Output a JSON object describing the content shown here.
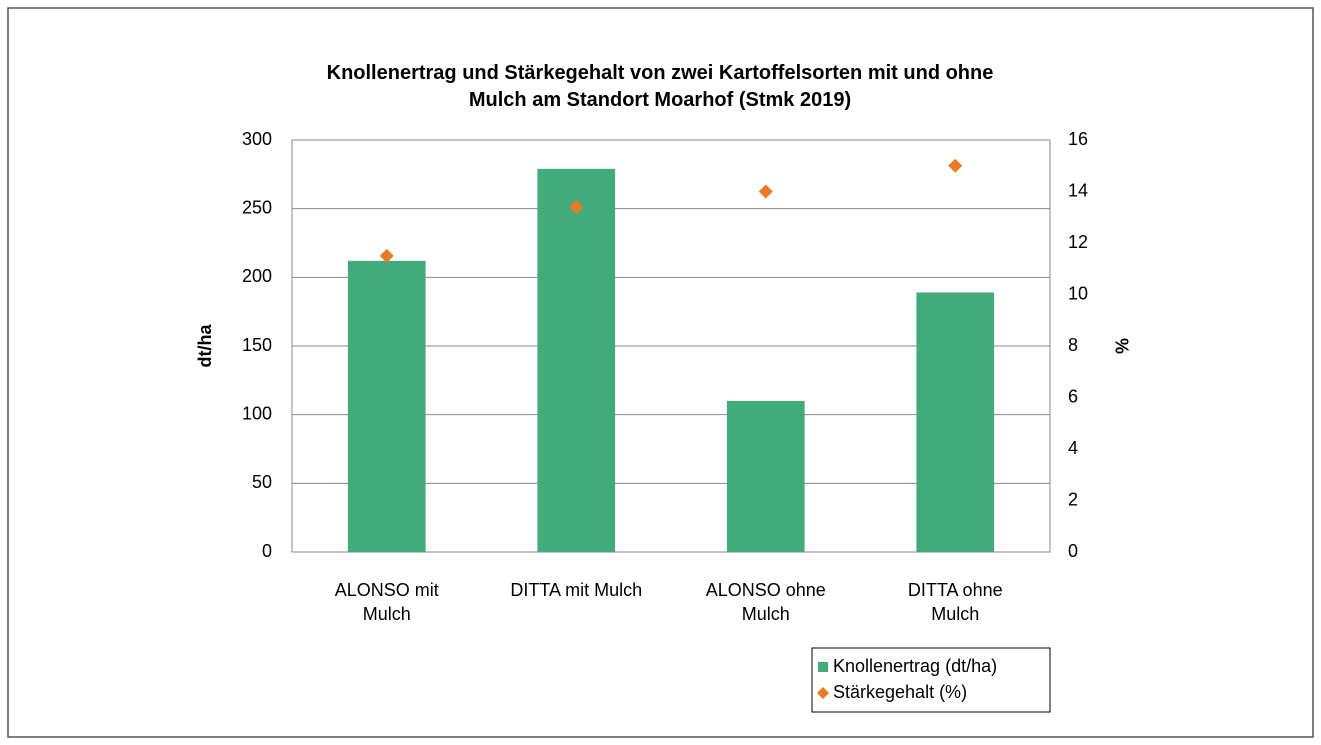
{
  "chart_data": {
    "type": "bar",
    "title": "Knollenertrag und Stärkegehalt von zwei Kartoffelsorten mit und ohne Mulch am Standort Moarhof (Stmk 2019)",
    "categories": [
      "ALONSO mit Mulch",
      "DITTA mit Mulch",
      "ALONSO ohne Mulch",
      "DITTA ohne Mulch"
    ],
    "series": [
      {
        "name": "Knollenertrag (dt/ha)",
        "color": "#43aa7c",
        "type": "bar",
        "values": [
          212,
          279,
          110,
          189
        ]
      },
      {
        "name": "Stärkegehalt (%)",
        "color": "#e97a27",
        "type": "scatter",
        "axis": "y2",
        "values": [
          11.5,
          13.4,
          14.0,
          15.0
        ]
      }
    ],
    "ylabel": "dt/ha",
    "y2label": "%",
    "ylim": [
      0,
      300
    ],
    "yticks": [
      0,
      50,
      100,
      150,
      200,
      250,
      300
    ],
    "y2lim": [
      0,
      16
    ],
    "y2ticks": [
      0,
      2,
      4,
      6,
      8,
      10,
      12,
      14,
      16
    ],
    "grid": true
  }
}
